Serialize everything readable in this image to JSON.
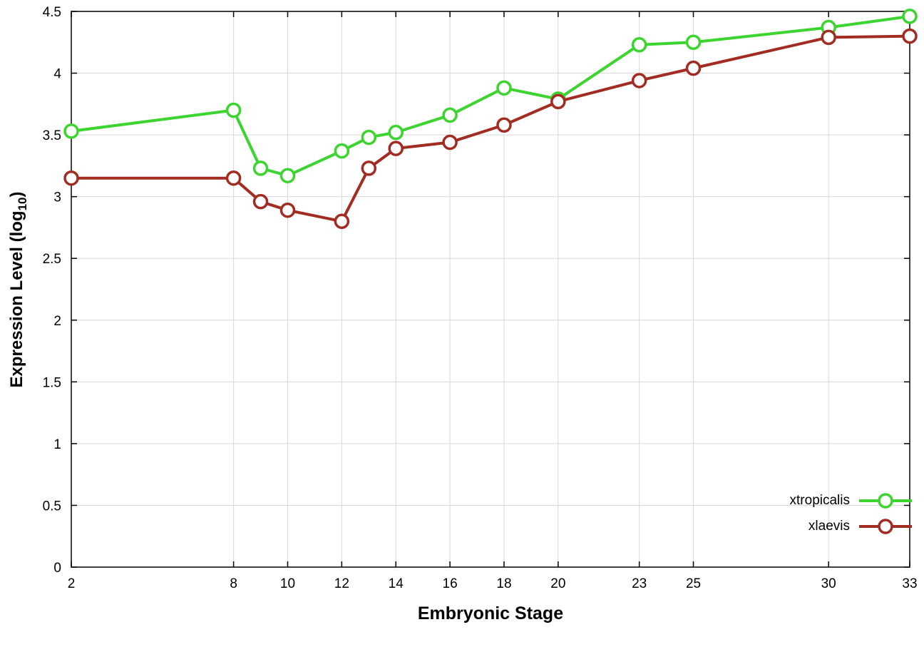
{
  "colors": {
    "background": "#ffffff",
    "grid": "#d8d8d8",
    "axis": "#000000",
    "marker_fill": "#ffffff"
  },
  "chart_data": {
    "type": "line",
    "title": "",
    "xlabel": "Embryonic Stage",
    "ylabel": {
      "prefix": "Expression Level (log",
      "sub": "10",
      "suffix": ")"
    },
    "x": [
      2,
      8,
      9,
      10,
      12,
      13,
      14,
      16,
      18,
      20,
      23,
      25,
      30,
      33
    ],
    "series": [
      {
        "name": "xtropicalis",
        "color": "#3cd42e",
        "values": [
          3.53,
          3.7,
          3.23,
          3.17,
          3.37,
          3.48,
          3.52,
          3.66,
          3.88,
          3.79,
          4.23,
          4.25,
          4.37,
          4.46
        ]
      },
      {
        "name": "xlaevis",
        "color": "#a22c21",
        "values": [
          3.15,
          3.15,
          2.96,
          2.89,
          2.8,
          3.23,
          3.39,
          3.44,
          3.58,
          3.77,
          3.94,
          4.04,
          4.29,
          4.3
        ]
      }
    ],
    "xlim": [
      2,
      33
    ],
    "ylim": [
      0,
      4.5
    ],
    "x_ticks": [
      2,
      8,
      10,
      12,
      14,
      16,
      18,
      20,
      23,
      25,
      30,
      33
    ],
    "y_ticks": [
      0,
      0.5,
      1,
      1.5,
      2,
      2.5,
      3,
      3.5,
      4,
      4.5
    ],
    "y_tick_labels": [
      "0",
      "0.5",
      "1",
      "1.5",
      "2",
      "2.5",
      "3",
      "3.5",
      "4",
      "4.5"
    ],
    "grid": true,
    "legend_position": "inside-bottom-right",
    "marker": "open-circle"
  }
}
